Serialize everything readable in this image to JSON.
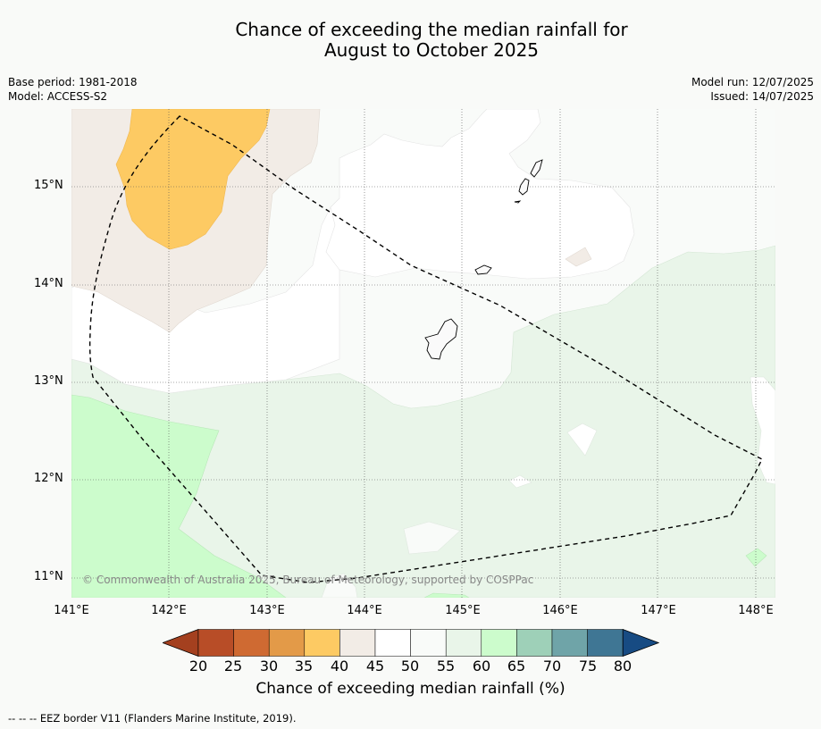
{
  "title_line1": "Chance of exceeding the median rainfall for",
  "title_line2": "August to October 2025",
  "meta_left": {
    "base_period": "Base period: 1981-2018",
    "model": "Model: ACCESS-S2"
  },
  "meta_right": {
    "model_run": "Model run: 12/07/2025",
    "issued": "Issued: 14/07/2025"
  },
  "lat_labels": [
    "15°N",
    "14°N",
    "13°N",
    "12°N",
    "11°N"
  ],
  "lon_labels": [
    "141°E",
    "142°E",
    "143°E",
    "144°E",
    "145°E",
    "146°E",
    "147°E",
    "148°E"
  ],
  "copyright": "© Commonwealth of Australia 2025, Bureau of Meteorology, supported by COSPPac",
  "colorbar": {
    "ticks": [
      "20",
      "25",
      "30",
      "35",
      "40",
      "45",
      "50",
      "55",
      "60",
      "65",
      "70",
      "75",
      "80"
    ],
    "colors": [
      "#a4401f",
      "#b84d27",
      "#cf6a32",
      "#e39a48",
      "#fdca63",
      "#f2ece6",
      "#ffffff",
      "#f9fbf9",
      "#e9f5e9",
      "#ccfccc",
      "#9ed0b8",
      "#6fa4a8",
      "#3f7694",
      "#174b83"
    ],
    "title": "Chance of exceeding median rainfall (%)"
  },
  "footnote": "--  --  -- EEZ border V11 (Flanders Marine Institute, 2019).",
  "colors": {
    "band_35_40": "#fdca63",
    "band_40_45": "#f2ece6",
    "band_45_50": "#ffffff",
    "band_50_55": "#f9fbf9",
    "band_55_60": "#e9f5e9",
    "band_60_65": "#ccfccc"
  }
}
